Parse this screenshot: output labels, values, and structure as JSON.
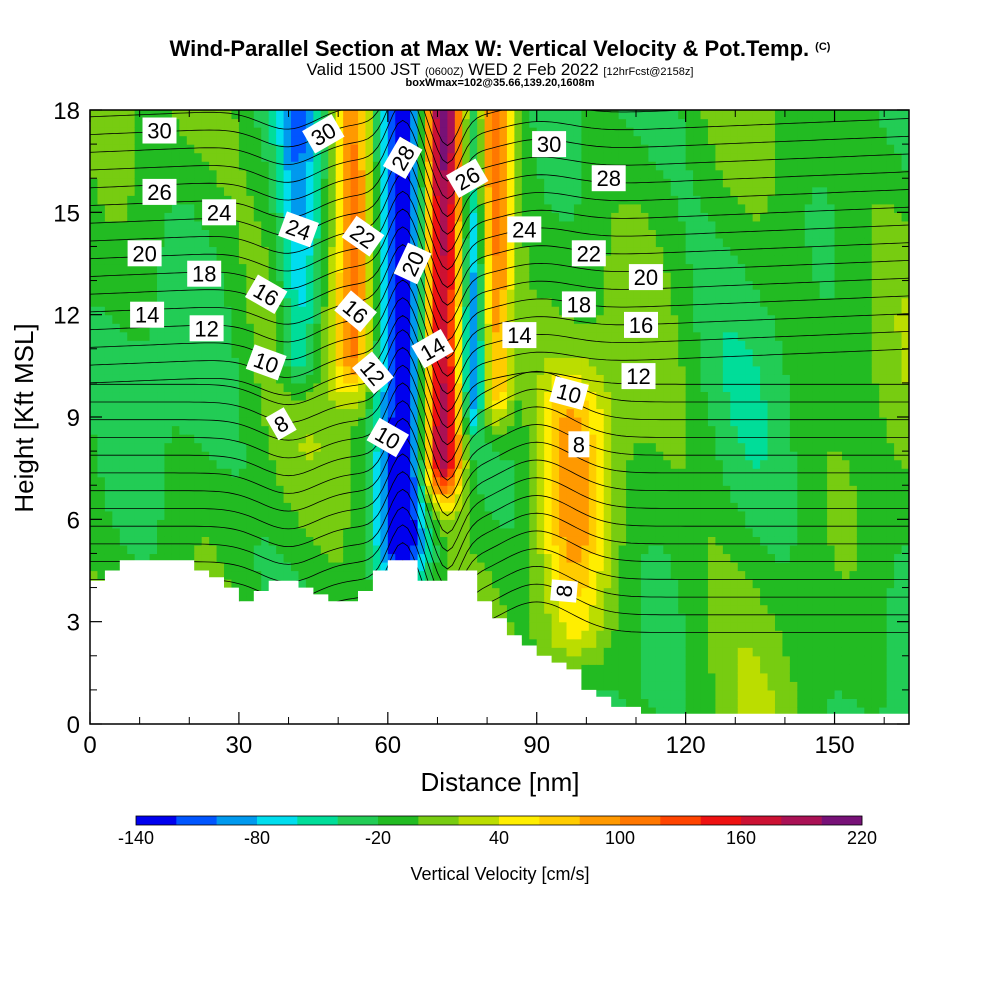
{
  "header": {
    "title": "Wind-Parallel Section at Max W: Vertical Velocity & Pot.Temp.",
    "copyright": "(C)",
    "valid_prefix": "Valid 1500 JST",
    "valid_utc": "(0600Z)",
    "valid_date": "WED 2 Feb 2022",
    "forecast": "[12hrFcst@2158z]",
    "box_info": "boxWmax=102@35.66,139.20,1608m"
  },
  "chart_data": {
    "type": "heatmap",
    "xlabel": "Distance [nm]",
    "ylabel": "Height [Kft MSL]",
    "xlim": [
      0,
      165
    ],
    "ylim": [
      0,
      18
    ],
    "x_ticks": [
      "0",
      "30",
      "60",
      "90",
      "120",
      "150"
    ],
    "y_ticks": [
      "0",
      "3",
      "6",
      "9",
      "12",
      "15",
      "18"
    ],
    "colorbar": {
      "title": "Vertical Velocity [cm/s]",
      "range": [
        -140,
        220
      ],
      "step": 20,
      "labels": [
        "-140",
        "-80",
        "-20",
        "40",
        "100",
        "160",
        "220"
      ],
      "colors": [
        "#0000ee",
        "#0055ff",
        "#0099ee",
        "#00ddee",
        "#00dd99",
        "#22cc55",
        "#22bb22",
        "#77cc11",
        "#bbdd00",
        "#ffee00",
        "#ffcc00",
        "#ff9900",
        "#ff7700",
        "#ff4400",
        "#ee1111",
        "#cc1133",
        "#aa1155",
        "#771177"
      ]
    },
    "background_value": -10,
    "velocity_features": [
      {
        "name": "downdraft",
        "x": 63,
        "y_range": [
          5.5,
          18
        ],
        "width": 5,
        "min": -140
      },
      {
        "name": "updraft",
        "x": 71,
        "y_range": [
          8,
          18
        ],
        "width": 4,
        "max": 210
      },
      {
        "name": "downdraft",
        "x": 77,
        "y_range": [
          10,
          18
        ],
        "width": 2,
        "min": -90
      },
      {
        "name": "updraft",
        "x": 82,
        "y_range": [
          10,
          18
        ],
        "width": 3,
        "max": 100
      },
      {
        "name": "updraft",
        "x": 53,
        "y_range": [
          11,
          18
        ],
        "width": 4,
        "max": 100
      },
      {
        "name": "downdraft",
        "x": 42,
        "y_range": [
          11,
          18
        ],
        "width": 4,
        "min": -80
      },
      {
        "name": "updraft",
        "x": 97,
        "y_range": [
          2.8,
          9
        ],
        "width": 7,
        "max": 80
      }
    ],
    "terrain_profile": {
      "x": [
        0,
        3,
        6,
        16,
        21,
        24,
        27,
        30,
        33,
        36,
        39,
        42,
        45,
        48,
        51,
        54,
        57,
        60,
        63,
        66,
        69,
        72,
        75,
        78,
        81,
        84,
        87,
        90,
        93,
        96,
        99,
        102,
        105,
        108,
        111,
        165
      ],
      "height": [
        4.2,
        4.5,
        4.8,
        4.8,
        4.5,
        4.3,
        4.0,
        3.6,
        3.9,
        4.2,
        4.2,
        4.0,
        3.8,
        3.6,
        3.6,
        3.9,
        4.5,
        4.8,
        4.8,
        4.2,
        4.2,
        4.5,
        4.5,
        3.6,
        3.1,
        2.6,
        2.3,
        2.0,
        1.8,
        1.6,
        1.0,
        0.8,
        0.5,
        0.5,
        0.3,
        0.3
      ]
    },
    "theta_labels": [
      {
        "text": "30",
        "x": 14,
        "y": 17.4,
        "rot": 0
      },
      {
        "text": "30",
        "x": 47,
        "y": 17.3,
        "rot": -30
      },
      {
        "text": "28",
        "x": 63,
        "y": 16.6,
        "rot": -60
      },
      {
        "text": "26",
        "x": 76,
        "y": 16.0,
        "rot": -30
      },
      {
        "text": "30",
        "x": 92.5,
        "y": 17.0,
        "rot": 0
      },
      {
        "text": "28",
        "x": 104.5,
        "y": 16.0,
        "rot": 0
      },
      {
        "text": "26",
        "x": 14,
        "y": 15.6,
        "rot": 0
      },
      {
        "text": "24",
        "x": 26,
        "y": 15.0,
        "rot": 0
      },
      {
        "text": "24",
        "x": 42,
        "y": 14.5,
        "rot": 20
      },
      {
        "text": "22",
        "x": 55,
        "y": 14.3,
        "rot": 35
      },
      {
        "text": "20",
        "x": 65,
        "y": 13.5,
        "rot": -65
      },
      {
        "text": "24",
        "x": 87.5,
        "y": 14.5,
        "rot": 0
      },
      {
        "text": "22",
        "x": 100.5,
        "y": 13.8,
        "rot": 0
      },
      {
        "text": "20",
        "x": 112,
        "y": 13.1,
        "rot": 0
      },
      {
        "text": "20",
        "x": 11,
        "y": 13.8,
        "rot": 0
      },
      {
        "text": "18",
        "x": 23,
        "y": 13.2,
        "rot": 0
      },
      {
        "text": "16",
        "x": 35.5,
        "y": 12.6,
        "rot": 30
      },
      {
        "text": "16",
        "x": 53.5,
        "y": 12.1,
        "rot": 40
      },
      {
        "text": "18",
        "x": 98.5,
        "y": 12.3,
        "rot": 0
      },
      {
        "text": "16",
        "x": 111,
        "y": 11.7,
        "rot": 0
      },
      {
        "text": "14",
        "x": 11.5,
        "y": 12.0,
        "rot": 0
      },
      {
        "text": "12",
        "x": 23.5,
        "y": 11.6,
        "rot": 0
      },
      {
        "text": "14",
        "x": 69,
        "y": 11.0,
        "rot": -30
      },
      {
        "text": "14",
        "x": 86.5,
        "y": 11.4,
        "rot": 0
      },
      {
        "text": "10",
        "x": 35.5,
        "y": 10.6,
        "rot": 20
      },
      {
        "text": "12",
        "x": 57,
        "y": 10.3,
        "rot": 50
      },
      {
        "text": "12",
        "x": 110.5,
        "y": 10.2,
        "rot": 0
      },
      {
        "text": "10",
        "x": 96.5,
        "y": 9.7,
        "rot": 15
      },
      {
        "text": "8",
        "x": 38.5,
        "y": 8.8,
        "rot": -30
      },
      {
        "text": "10",
        "x": 60,
        "y": 8.4,
        "rot": 30
      },
      {
        "text": "8",
        "x": 98.5,
        "y": 8.2,
        "rot": 0
      },
      {
        "text": "8",
        "x": 95.5,
        "y": 3.9,
        "rot": -85
      }
    ]
  }
}
